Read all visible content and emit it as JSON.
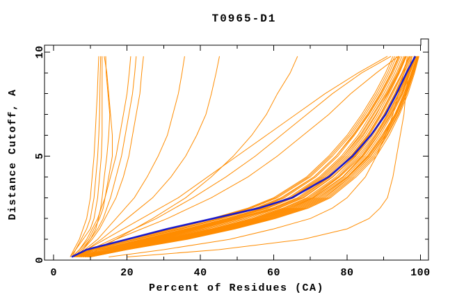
{
  "chart_data": {
    "type": "line",
    "title": "T0965-D1",
    "xlabel": "Percent of Residues (CA)",
    "ylabel": "Distance Cutoff, A",
    "x_axis": {
      "min": -2.5,
      "max": 102.2,
      "major_ticks": [
        0,
        20,
        40,
        60,
        80,
        100
      ],
      "major_tick_labels": [
        "0",
        "20",
        "40",
        "60",
        "80",
        "100"
      ],
      "minor_ticks": [
        10,
        30,
        50,
        70,
        90
      ]
    },
    "y_axis": {
      "min": 0,
      "max": 10.33,
      "major_ticks": [
        0,
        5,
        10
      ],
      "major_tick_labels": [
        "0",
        "5",
        "10"
      ],
      "minor_ticks": [
        1,
        2,
        3,
        4,
        6,
        7,
        8,
        9
      ]
    },
    "grid": false,
    "legend": "none",
    "colors": {
      "models": "#ff8c00",
      "highlight": "#1a1acc",
      "axis": "#000000",
      "background": "#ffffff"
    },
    "cutoffs": [
      0.15,
      0.5,
      1,
      1.5,
      2,
      2.5,
      3,
      4,
      5,
      6,
      7,
      8,
      9,
      9.8
    ],
    "highlight_series": {
      "name": "highlighted-model",
      "percents": [
        4.9,
        9,
        20,
        31,
        43.5,
        56,
        65,
        75,
        81.5,
        86.5,
        90.5,
        93.5,
        96.2,
        98.6
      ]
    },
    "model_series_percents": [
      [
        4.5,
        5.5,
        7,
        8,
        9,
        9.5,
        10,
        10.5,
        11,
        11.3,
        11.6,
        11.9,
        12.1,
        12.3
      ],
      [
        5,
        6,
        7.5,
        9,
        10,
        10.5,
        11,
        11.5,
        12,
        12.3,
        12.5,
        12.6,
        12.7,
        12.8
      ],
      [
        4.5,
        6,
        8,
        10,
        11,
        11.5,
        12,
        12.5,
        13,
        13.2,
        13.2,
        13.2,
        13.2,
        13.2
      ],
      [
        5,
        7,
        9.5,
        11,
        12.5,
        13.5,
        14,
        15,
        16,
        16,
        15.5,
        15,
        14.5,
        13.8
      ],
      [
        6,
        8,
        10,
        11.5,
        12.2,
        12.8,
        13.2,
        13.8,
        14.5,
        15,
        15.3,
        14.8,
        14.3,
        14.2
      ],
      [
        5,
        7,
        9,
        10.5,
        12,
        13,
        14,
        15.5,
        17,
        18,
        19,
        20,
        20.6,
        21
      ],
      [
        5.5,
        7.5,
        10,
        12,
        13.5,
        14.5,
        15.5,
        17,
        18.5,
        19.5,
        20.5,
        21.5,
        22.1,
        22.5
      ],
      [
        6,
        8,
        10.5,
        12.5,
        14,
        15.5,
        17,
        19,
        20.5,
        21.5,
        22.5,
        23.5,
        24,
        24.5
      ],
      [
        6,
        8.5,
        12,
        14.5,
        17,
        19.5,
        22,
        25.5,
        28.5,
        31,
        32.5,
        34,
        35,
        35.7
      ],
      [
        6.5,
        9,
        13,
        16.5,
        20,
        23.5,
        27,
        32,
        36,
        39,
        41.5,
        43,
        44.3,
        45.2
      ],
      [
        9,
        12,
        17,
        22,
        27,
        31.5,
        36,
        43,
        49,
        54,
        58,
        61,
        64.5,
        66.5
      ],
      [
        6,
        10,
        16,
        22,
        28,
        33,
        38,
        47,
        55,
        62,
        69,
        76,
        84,
        92
      ],
      [
        6.5,
        11,
        17,
        24,
        31,
        37,
        43,
        53,
        61,
        68,
        75,
        81,
        88,
        94
      ],
      [
        5.5,
        9,
        14,
        19,
        24,
        29,
        34,
        42,
        50,
        58,
        66,
        74,
        83,
        91
      ],
      [
        20,
        45,
        68,
        80,
        86,
        89,
        91,
        92.5,
        93.5,
        94.5,
        95.5,
        96,
        96.8,
        97.7
      ],
      [
        15,
        30,
        48,
        60,
        70,
        76,
        80,
        85,
        88,
        90.5,
        92.5,
        94,
        95.5,
        96.5
      ],
      [
        5,
        10,
        20,
        32,
        43,
        53,
        60,
        69,
        75,
        80,
        84,
        87.5,
        90.5,
        92.5
      ],
      [
        5.5,
        11,
        22,
        34,
        45,
        55,
        62,
        71,
        77,
        81.5,
        85.5,
        89,
        92,
        94
      ],
      [
        6,
        12,
        24,
        36,
        47,
        57,
        64,
        72.5,
        78.5,
        83,
        86.5,
        90,
        93,
        95
      ],
      [
        6.5,
        13,
        26,
        38,
        49,
        58.5,
        65.5,
        74,
        80,
        84.5,
        88,
        91,
        94,
        96
      ],
      [
        7,
        14,
        27,
        39,
        50,
        60,
        67,
        75,
        81,
        85.5,
        89,
        92,
        95,
        97
      ],
      [
        7.5,
        15,
        29,
        41,
        52,
        61.5,
        68,
        76,
        82,
        86.5,
        90,
        93,
        95.5,
        97.5
      ],
      [
        8,
        16,
        30,
        43,
        54,
        63,
        69.5,
        77.5,
        83,
        87.5,
        91,
        94,
        96.5,
        98.3
      ],
      [
        8.5,
        17,
        32,
        45,
        56,
        65,
        71,
        79,
        84.5,
        88.5,
        92,
        95,
        97,
        98.8
      ],
      [
        9,
        18,
        33,
        46,
        57,
        66,
        72,
        80,
        85.5,
        89.5,
        93,
        95.5,
        97.5,
        99.1
      ],
      [
        9.5,
        19,
        35,
        48,
        59,
        68,
        74,
        81,
        86.5,
        90.5,
        93.5,
        96,
        98,
        99.4
      ],
      [
        5,
        10.5,
        21,
        33,
        44,
        54,
        61,
        70,
        76,
        81,
        85,
        88.5,
        91.5,
        93.5
      ],
      [
        6,
        12,
        25,
        37,
        48,
        58,
        65,
        73,
        79,
        83.5,
        87,
        90.5,
        93.5,
        95.5
      ],
      [
        7,
        14,
        28,
        40,
        51,
        61,
        67.5,
        75.5,
        81.5,
        86,
        89.5,
        92.5,
        95.2,
        97.2
      ],
      [
        8,
        16,
        31,
        44,
        55,
        64,
        70.5,
        78,
        84,
        88,
        91.5,
        94.5,
        96.8,
        98.5
      ],
      [
        9,
        18,
        34,
        47,
        58,
        67,
        73,
        80.5,
        86,
        90,
        93.2,
        95.8,
        97.7,
        99.3
      ],
      [
        10,
        20,
        36,
        49,
        60,
        69,
        75,
        82,
        87.5,
        91,
        94,
        96.3,
        98.2,
        99.5
      ],
      [
        5.5,
        11,
        23,
        35,
        46,
        56,
        63,
        71.5,
        77.5,
        82,
        86,
        89.5,
        92.5,
        94.5
      ],
      [
        6.5,
        13,
        26.5,
        38.5,
        49.5,
        59.5,
        66.5,
        74.5,
        80.5,
        85,
        88.5,
        91.5,
        94.3,
        96.2
      ],
      [
        7.5,
        15,
        29.5,
        42,
        53,
        62.5,
        69,
        77,
        82.5,
        87,
        90.5,
        93.5,
        96,
        97.8
      ],
      [
        8.5,
        17,
        32.5,
        45.5,
        56.5,
        65.5,
        71.5,
        79.5,
        85,
        89,
        92.3,
        95.2,
        97.2,
        98.9
      ],
      [
        9.5,
        19,
        35.5,
        48.5,
        59.5,
        68.5,
        74.5,
        81.5,
        87,
        90.8,
        93.8,
        96.2,
        98,
        99.4
      ],
      [
        5,
        10,
        20.5,
        32.5,
        43.5,
        53.5,
        60.5,
        69.5,
        75.5,
        80.5,
        84.5,
        88,
        91,
        93
      ],
      [
        6,
        12,
        24.5,
        36.5,
        47.5,
        57.5,
        64.5,
        73,
        79,
        83.8,
        87.3,
        90.8,
        93.8,
        95.8
      ],
      [
        7,
        14,
        27.5,
        39.5,
        50.5,
        60.5,
        67,
        75.2,
        81.2,
        85.8,
        89.2,
        92.2,
        95,
        96.9
      ],
      [
        8,
        16,
        30.5,
        43.5,
        54.5,
        63.5,
        70,
        77.8,
        83.5,
        87.8,
        91.2,
        94.2,
        96.6,
        98.4
      ],
      [
        9,
        18,
        33.5,
        46.5,
        57.5,
        66.5,
        72.5,
        80.2,
        85.8,
        89.8,
        93,
        95.6,
        97.6,
        99.2
      ],
      [
        10,
        20,
        36.5,
        49.5,
        60.5,
        69.5,
        75.5,
        82.5,
        88,
        91.5,
        94.3,
        96.6,
        98.4,
        99.6
      ],
      [
        5.5,
        11,
        22.5,
        34.5,
        45.5,
        55.5,
        62.5,
        71,
        77,
        81.8,
        85.8,
        89.2,
        92.2,
        94.2
      ],
      [
        6.5,
        13,
        25.5,
        37.5,
        48.5,
        58.5,
        65.2,
        73.5,
        79.5,
        84.2,
        87.8,
        91.2,
        94.1,
        96
      ],
      [
        7.5,
        15,
        28.5,
        41,
        52,
        61.5,
        68.2,
        76.2,
        82.2,
        86.6,
        90.2,
        93.2,
        95.6,
        97.5
      ],
      [
        8.5,
        17,
        31.5,
        44.5,
        55.5,
        64.5,
        70.8,
        78.8,
        84.2,
        88.4,
        91.8,
        94.8,
        96.9,
        98.6
      ],
      [
        9.5,
        19,
        34.5,
        47.5,
        58.5,
        67.5,
        73.5,
        81,
        86.4,
        90.3,
        93.4,
        95.9,
        97.8,
        99.3
      ]
    ]
  }
}
